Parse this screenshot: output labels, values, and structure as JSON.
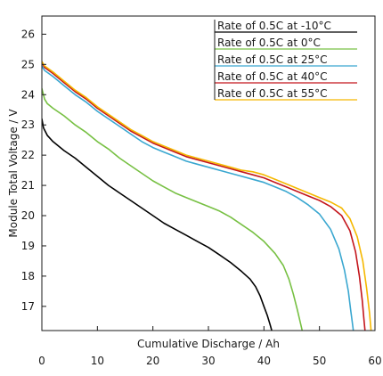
{
  "chart_data": {
    "type": "line",
    "title": "",
    "xlabel": "Cumulative Discharge / Ah",
    "ylabel": "Module Total Voltage / V",
    "xlim": [
      0,
      60
    ],
    "ylim": [
      16.2,
      26.6
    ],
    "xticks": [
      0,
      10,
      20,
      30,
      40,
      50,
      60
    ],
    "yticks": [
      17,
      18,
      19,
      20,
      21,
      22,
      23,
      24,
      25,
      26
    ],
    "grid": false,
    "legend_position": "top-right",
    "series": [
      {
        "name": "Rate of 0.5C at -10°C",
        "color": "#000000",
        "x": [
          0,
          0.3,
          1,
          2,
          4,
          6,
          8,
          10,
          12,
          14,
          16,
          18,
          20,
          22,
          24,
          26,
          28,
          30,
          32,
          34,
          36,
          37.5,
          38.5,
          39.3,
          40,
          40.6,
          41.1,
          41.4
        ],
        "y": [
          23.2,
          22.9,
          22.65,
          22.45,
          22.15,
          21.9,
          21.6,
          21.3,
          21.0,
          20.75,
          20.5,
          20.25,
          20.0,
          19.75,
          19.55,
          19.35,
          19.15,
          18.95,
          18.7,
          18.45,
          18.15,
          17.9,
          17.65,
          17.35,
          17.0,
          16.7,
          16.4,
          16.2
        ]
      },
      {
        "name": "Rate of 0.5C at 0°C",
        "color": "#77c043",
        "x": [
          0,
          0.5,
          1,
          2,
          4,
          6,
          8,
          10,
          12,
          14,
          16,
          18,
          20,
          22,
          24,
          26,
          28,
          30,
          32,
          34,
          36,
          38,
          40,
          42,
          43.5,
          44.5,
          45.3,
          46,
          46.5,
          46.9
        ],
        "y": [
          24.2,
          23.85,
          23.7,
          23.55,
          23.3,
          23.0,
          22.75,
          22.45,
          22.2,
          21.9,
          21.65,
          21.4,
          21.15,
          20.95,
          20.75,
          20.6,
          20.45,
          20.3,
          20.15,
          19.95,
          19.7,
          19.45,
          19.15,
          18.75,
          18.35,
          17.9,
          17.4,
          16.9,
          16.5,
          16.2
        ]
      },
      {
        "name": "Rate of 0.5C at 25°C",
        "color": "#3aa7d0",
        "x": [
          0,
          0.5,
          2,
          4,
          6,
          8,
          10,
          12,
          14,
          16,
          18,
          20,
          22,
          24,
          26,
          28,
          30,
          32,
          34,
          36,
          38,
          40,
          42,
          44,
          46,
          48,
          50,
          52,
          53.5,
          54.5,
          55.2,
          55.6,
          55.9,
          56.1
        ],
        "y": [
          24.95,
          24.8,
          24.6,
          24.3,
          24.0,
          23.75,
          23.45,
          23.2,
          22.95,
          22.7,
          22.45,
          22.25,
          22.1,
          21.95,
          21.8,
          21.7,
          21.6,
          21.5,
          21.4,
          21.3,
          21.2,
          21.1,
          20.95,
          20.8,
          20.6,
          20.35,
          20.05,
          19.55,
          18.9,
          18.2,
          17.5,
          16.9,
          16.5,
          16.2
        ]
      },
      {
        "name": "Rate of 0.5C at 40°C",
        "color": "#c4161c",
        "x": [
          0,
          0.5,
          2,
          4,
          6,
          8,
          10,
          12,
          14,
          16,
          18,
          20,
          22,
          24,
          26,
          28,
          30,
          32,
          34,
          36,
          38,
          40,
          42,
          44,
          46,
          48,
          50,
          52,
          54,
          55.5,
          56.5,
          57.2,
          57.7,
          58.0,
          58.2
        ],
        "y": [
          25.05,
          24.9,
          24.7,
          24.4,
          24.1,
          23.85,
          23.55,
          23.3,
          23.05,
          22.8,
          22.6,
          22.4,
          22.25,
          22.1,
          21.95,
          21.85,
          21.75,
          21.65,
          21.55,
          21.45,
          21.35,
          21.25,
          21.1,
          20.95,
          20.8,
          20.65,
          20.5,
          20.3,
          20.0,
          19.5,
          18.8,
          18.0,
          17.2,
          16.6,
          16.2
        ]
      },
      {
        "name": "Rate of 0.5C at 55°C",
        "color": "#f5b800",
        "x": [
          0,
          0.5,
          2,
          4,
          6,
          8,
          10,
          12,
          14,
          16,
          18,
          20,
          22,
          24,
          26,
          28,
          30,
          32,
          34,
          36,
          38,
          40,
          42,
          44,
          46,
          48,
          50,
          52,
          54,
          55.5,
          56.8,
          57.8,
          58.5,
          59.0,
          59.3
        ],
        "y": [
          25.1,
          24.95,
          24.75,
          24.45,
          24.15,
          23.9,
          23.6,
          23.35,
          23.1,
          22.85,
          22.65,
          22.45,
          22.3,
          22.15,
          22.0,
          21.9,
          21.8,
          21.7,
          21.6,
          21.5,
          21.45,
          21.35,
          21.2,
          21.05,
          20.9,
          20.75,
          20.6,
          20.45,
          20.25,
          19.9,
          19.3,
          18.5,
          17.6,
          16.8,
          16.2
        ]
      }
    ]
  }
}
